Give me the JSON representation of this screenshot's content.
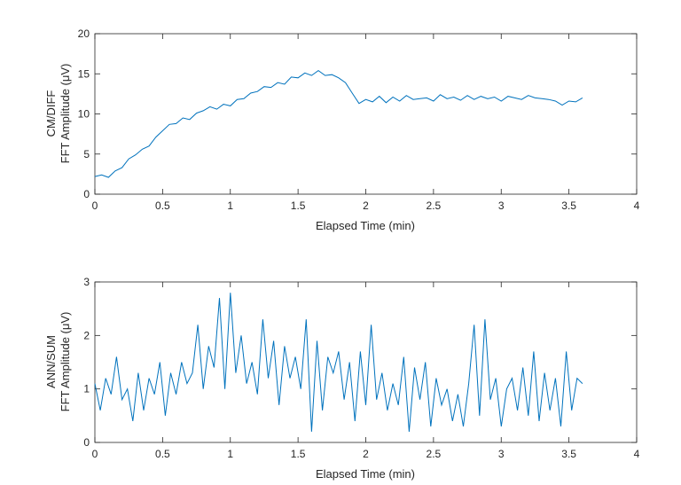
{
  "chart_data": [
    {
      "type": "line",
      "xlabel": "Elapsed Time (min)",
      "ylabel": [
        "CM/DIFF",
        "FFT Amplitude (μV)"
      ],
      "xlim": [
        0,
        4
      ],
      "ylim": [
        0,
        20
      ],
      "xticks": [
        0,
        0.5,
        1,
        1.5,
        2,
        2.5,
        3,
        3.5,
        4
      ],
      "xtick_labels": [
        "0",
        "0.5",
        "1",
        "1.5",
        "2",
        "2.5",
        "3",
        "3.5",
        "4"
      ],
      "yticks": [
        0,
        5,
        10,
        15,
        20
      ],
      "ytick_labels": [
        "0",
        "5",
        "10",
        "15",
        "20"
      ],
      "grid": false,
      "color": "#0072BD",
      "x": [
        0,
        0.05,
        0.1,
        0.15,
        0.2,
        0.25,
        0.3,
        0.35,
        0.4,
        0.45,
        0.5,
        0.55,
        0.6,
        0.65,
        0.7,
        0.75,
        0.8,
        0.85,
        0.9,
        0.95,
        1.0,
        1.05,
        1.1,
        1.15,
        1.2,
        1.25,
        1.3,
        1.35,
        1.4,
        1.45,
        1.5,
        1.55,
        1.6,
        1.65,
        1.7,
        1.75,
        1.8,
        1.85,
        1.9,
        1.95,
        2.0,
        2.05,
        2.1,
        2.15,
        2.2,
        2.25,
        2.3,
        2.35,
        2.4,
        2.45,
        2.5,
        2.55,
        2.6,
        2.65,
        2.7,
        2.75,
        2.8,
        2.85,
        2.9,
        2.95,
        3.0,
        3.05,
        3.1,
        3.15,
        3.2,
        3.25,
        3.3,
        3.35,
        3.4,
        3.45,
        3.5,
        3.55,
        3.6
      ],
      "y": [
        2.2,
        2.4,
        2.1,
        2.9,
        3.3,
        4.4,
        4.9,
        5.6,
        6.0,
        7.1,
        7.9,
        8.7,
        8.8,
        9.5,
        9.3,
        10.1,
        10.4,
        10.9,
        10.6,
        11.2,
        11.0,
        11.8,
        11.9,
        12.6,
        12.8,
        13.4,
        13.3,
        13.9,
        13.7,
        14.6,
        14.5,
        15.1,
        14.8,
        15.4,
        14.8,
        14.9,
        14.5,
        13.9,
        12.6,
        11.3,
        11.8,
        11.5,
        12.2,
        11.4,
        12.1,
        11.6,
        12.3,
        11.8,
        11.9,
        12.0,
        11.6,
        12.4,
        11.9,
        12.1,
        11.7,
        12.3,
        11.8,
        12.2,
        11.9,
        12.1,
        11.6,
        12.2,
        12.0,
        11.8,
        12.3,
        12.0,
        11.9,
        11.8,
        11.6,
        11.1,
        11.6,
        11.5,
        12.0
      ]
    },
    {
      "type": "line",
      "xlabel": "Elapsed Time (min)",
      "ylabel": [
        "ANN/SUM",
        "FFT Amplitude (μV)"
      ],
      "xlim": [
        0,
        4
      ],
      "ylim": [
        0,
        3
      ],
      "xticks": [
        0,
        0.5,
        1,
        1.5,
        2,
        2.5,
        3,
        3.5,
        4
      ],
      "xtick_labels": [
        "0",
        "0.5",
        "1",
        "1.5",
        "2",
        "2.5",
        "3",
        "3.5",
        "4"
      ],
      "yticks": [
        0,
        1,
        2,
        3
      ],
      "ytick_labels": [
        "0",
        "1",
        "2",
        "3"
      ],
      "grid": false,
      "color": "#0072BD",
      "x": [
        0,
        0.04,
        0.08,
        0.12,
        0.16,
        0.2,
        0.24,
        0.28,
        0.32,
        0.36,
        0.4,
        0.44,
        0.48,
        0.52,
        0.56,
        0.6,
        0.64,
        0.68,
        0.72,
        0.76,
        0.8,
        0.84,
        0.88,
        0.92,
        0.96,
        1.0,
        1.04,
        1.08,
        1.12,
        1.16,
        1.2,
        1.24,
        1.28,
        1.32,
        1.36,
        1.4,
        1.44,
        1.48,
        1.52,
        1.56,
        1.6,
        1.64,
        1.68,
        1.72,
        1.76,
        1.8,
        1.84,
        1.88,
        1.92,
        1.96,
        2.0,
        2.04,
        2.08,
        2.12,
        2.16,
        2.2,
        2.24,
        2.28,
        2.32,
        2.36,
        2.4,
        2.44,
        2.48,
        2.52,
        2.56,
        2.6,
        2.64,
        2.68,
        2.72,
        2.76,
        2.8,
        2.84,
        2.88,
        2.92,
        2.96,
        3.0,
        3.04,
        3.08,
        3.12,
        3.16,
        3.2,
        3.24,
        3.28,
        3.32,
        3.36,
        3.4,
        3.44,
        3.48,
        3.52,
        3.56,
        3.6
      ],
      "y": [
        1.1,
        0.6,
        1.2,
        0.9,
        1.6,
        0.8,
        1.0,
        0.4,
        1.3,
        0.6,
        1.2,
        0.9,
        1.5,
        0.5,
        1.3,
        0.9,
        1.5,
        1.1,
        1.3,
        2.2,
        1.0,
        1.8,
        1.4,
        2.7,
        1.0,
        2.8,
        1.3,
        2.0,
        1.1,
        1.5,
        0.9,
        2.3,
        1.2,
        1.9,
        0.7,
        1.8,
        1.2,
        1.6,
        1.0,
        2.3,
        0.2,
        1.9,
        0.6,
        1.6,
        1.3,
        1.7,
        0.8,
        1.5,
        0.4,
        1.7,
        0.7,
        2.2,
        0.8,
        1.3,
        0.6,
        1.1,
        0.7,
        1.6,
        0.2,
        1.4,
        0.8,
        1.5,
        0.3,
        1.2,
        0.7,
        1.0,
        0.4,
        0.9,
        0.3,
        1.1,
        2.2,
        0.5,
        2.3,
        0.8,
        1.2,
        0.3,
        1.0,
        1.2,
        0.6,
        1.4,
        0.5,
        1.7,
        0.4,
        1.3,
        0.6,
        1.2,
        0.3,
        1.7,
        0.6,
        1.2,
        1.1
      ]
    }
  ]
}
